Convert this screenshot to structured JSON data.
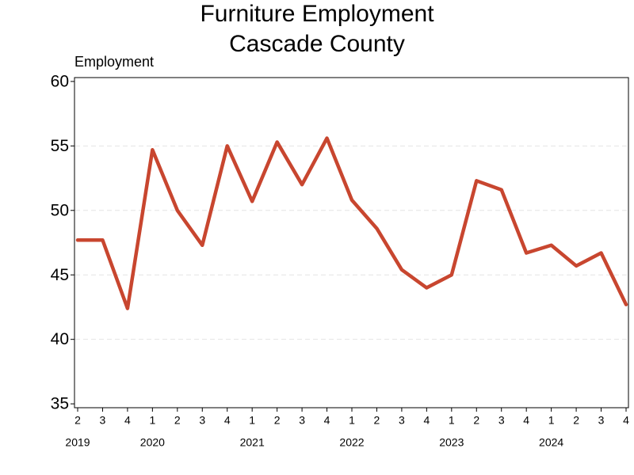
{
  "chart_data": {
    "type": "line",
    "title": "Furniture Employment",
    "subtitle": "Cascade County",
    "y_label": "Employment",
    "categories": [
      "2",
      "3",
      "4",
      "1",
      "2",
      "3",
      "4",
      "1",
      "2",
      "3",
      "4",
      "1",
      "2",
      "3",
      "4",
      "1",
      "2",
      "3",
      "4",
      "1",
      "2",
      "3",
      "4"
    ],
    "years": [
      "2019",
      null,
      null,
      "2020",
      null,
      null,
      null,
      "2021",
      null,
      null,
      null,
      "2022",
      null,
      null,
      null,
      "2023",
      null,
      null,
      null,
      "2024",
      null,
      null,
      null
    ],
    "series": [
      {
        "name": "Employment",
        "color": "#c8462f",
        "values": [
          47.7,
          47.7,
          42.4,
          54.7,
          50.0,
          47.3,
          55.0,
          50.7,
          55.3,
          52.0,
          55.6,
          50.8,
          48.6,
          45.4,
          44.0,
          45.0,
          52.3,
          51.6,
          46.7,
          47.3,
          45.7,
          46.7,
          42.7
        ]
      }
    ],
    "ylim": [
      34.7,
      60.3
    ],
    "yticks": [
      35,
      40,
      45,
      50,
      55,
      60
    ],
    "grid": true
  }
}
